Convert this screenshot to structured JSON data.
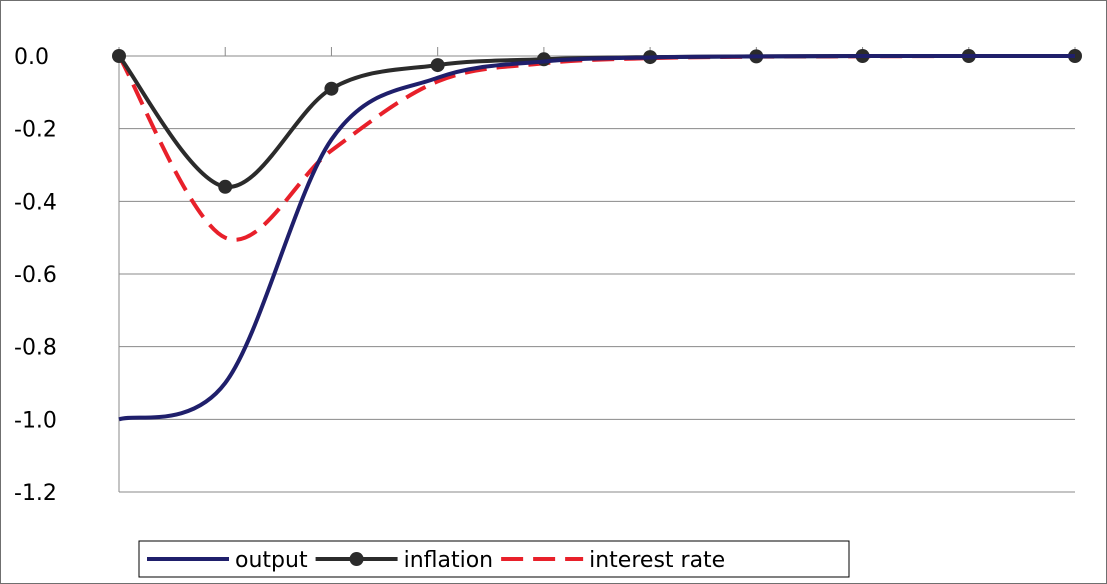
{
  "chart_data": {
    "type": "line",
    "title": "",
    "xlabel": "",
    "ylabel": "",
    "x": [
      0,
      1,
      2,
      3,
      4,
      5,
      6,
      7,
      8,
      9
    ],
    "ylim": [
      -1.2,
      0.0
    ],
    "yticks": [
      0.0,
      -0.2,
      -0.4,
      -0.6,
      -0.8,
      -1.0,
      -1.2
    ],
    "ytick_labels": [
      "0.0",
      "-0.2",
      "-0.4",
      "-0.6",
      "-0.8",
      "-1.0",
      "-1.2"
    ],
    "grid": true,
    "legend_position": "bottom-left",
    "series": [
      {
        "name": "output",
        "color": "#1f1f6b",
        "style": "solid",
        "marker": "none",
        "values": [
          -1.0,
          -0.9,
          -0.23,
          -0.06,
          -0.015,
          -0.004,
          -0.001,
          0.0,
          0.0,
          0.0
        ]
      },
      {
        "name": "inflation",
        "color": "#2b2b2b",
        "style": "solid",
        "marker": "circle",
        "values": [
          0.0,
          -0.36,
          -0.09,
          -0.025,
          -0.009,
          -0.003,
          -0.001,
          0.0,
          0.0,
          0.0
        ]
      },
      {
        "name": "interest rate",
        "color": "#e8202a",
        "style": "dashed",
        "marker": "none",
        "values": [
          0.0,
          -0.5,
          -0.26,
          -0.07,
          -0.02,
          -0.006,
          -0.002,
          -0.001,
          0.0,
          0.0
        ]
      }
    ]
  }
}
